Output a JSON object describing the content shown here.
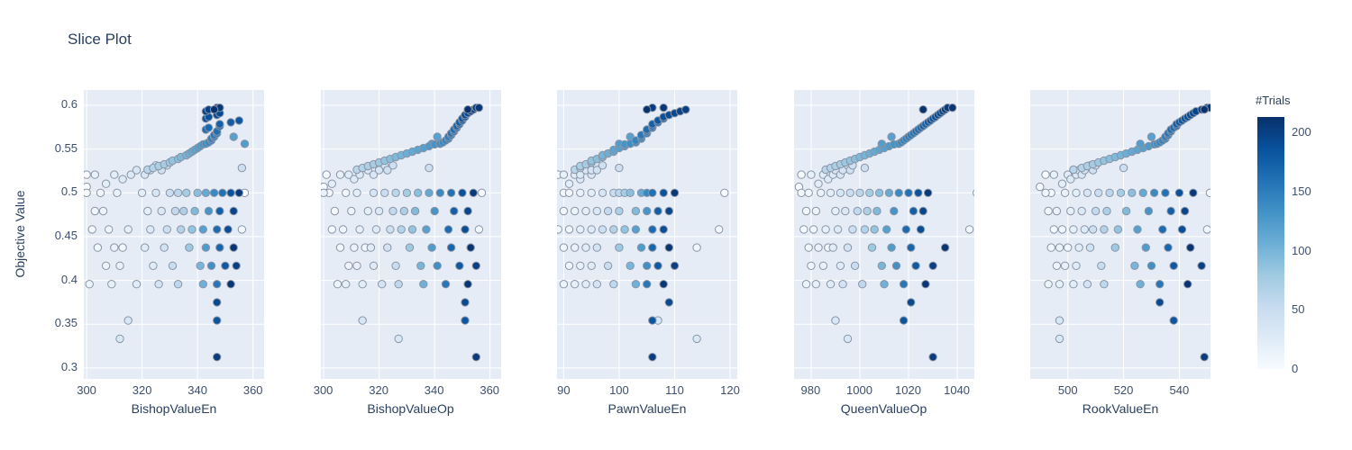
{
  "chart_data": {
    "type": "scatter",
    "title": "Slice Plot",
    "ylabel": "Objective Value",
    "ylim": [
      0.2875,
      0.6175
    ],
    "yticks": [
      "0.3",
      "0.35",
      "0.4",
      "0.45",
      "0.5",
      "0.55",
      "0.6"
    ],
    "grid": true,
    "colorbar": {
      "title": "#Trials",
      "ticks": [
        0,
        50,
        100,
        150,
        200
      ],
      "max": 213,
      "colorscale_name": "Blues"
    },
    "subplots": [
      {
        "xlabel": "BishopValueEn",
        "param": "BishopValueEn",
        "xlim": [
          299,
          364
        ],
        "xticks": [
          300,
          320,
          340,
          360
        ]
      },
      {
        "xlabel": "BishopValueOp",
        "param": "BishopValueOp",
        "xlim": [
          299,
          364
        ],
        "xticks": [
          300,
          320,
          340,
          360
        ]
      },
      {
        "xlabel": "PawnValueEn",
        "param": "PawnValueEn",
        "xlim": [
          88.8,
          121.3
        ],
        "xticks": [
          90,
          100,
          110,
          120
        ]
      },
      {
        "xlabel": "QueenValueOp",
        "param": "QueenValueOp",
        "xlim": [
          973,
          1047
        ],
        "xticks": [
          980,
          1000,
          1020,
          1040
        ]
      },
      {
        "xlabel": "RookValueEn",
        "param": "RookValueEn",
        "xlim": [
          486.5,
          551.2
        ],
        "xticks": [
          500,
          520,
          540
        ]
      }
    ],
    "trials": {
      "number": [
        3,
        8,
        15,
        22,
        35,
        48,
        60,
        75,
        90,
        110,
        140,
        160,
        185,
        205,
        2,
        5,
        12,
        20,
        30,
        55,
        70,
        95,
        130,
        175,
        195,
        4,
        10,
        18,
        28,
        45,
        65,
        85,
        120,
        165,
        190,
        6,
        7,
        14,
        25,
        40,
        80,
        125,
        170,
        210,
        9,
        11,
        16,
        26,
        50,
        100,
        135,
        180,
        200,
        13,
        19,
        24,
        38,
        58,
        105,
        155,
        208,
        0,
        1,
        17,
        21,
        23,
        27,
        29,
        31,
        33,
        36,
        39,
        42,
        44,
        46,
        62,
        66,
        71,
        76,
        81,
        86,
        91,
        96,
        101,
        106,
        111,
        116,
        121,
        126,
        131,
        136,
        119,
        123,
        141,
        145,
        148,
        151,
        154,
        157,
        161,
        164,
        167,
        171,
        174,
        177,
        181,
        184,
        187,
        191,
        194,
        197,
        201,
        204,
        207,
        211,
        192,
        183,
        34,
        32,
        203
      ],
      "objective": [
        0.5,
        0.5,
        0.5,
        0.5,
        0.5,
        0.5,
        0.5,
        0.5,
        0.5,
        0.5,
        0.5,
        0.5,
        0.5,
        0.5,
        0.5,
        0.4792,
        0.4792,
        0.4792,
        0.4792,
        0.4792,
        0.4792,
        0.4792,
        0.4792,
        0.4792,
        0.4792,
        0.4583,
        0.4583,
        0.4583,
        0.4583,
        0.4583,
        0.4583,
        0.4583,
        0.4583,
        0.4583,
        0.4583,
        0.4583,
        0.4375,
        0.4375,
        0.4375,
        0.4375,
        0.4375,
        0.4375,
        0.4375,
        0.4375,
        0.4375,
        0.4167,
        0.4167,
        0.4167,
        0.4167,
        0.4167,
        0.4167,
        0.4167,
        0.4167,
        0.3958,
        0.3958,
        0.3958,
        0.3958,
        0.3958,
        0.3958,
        0.3958,
        0.3958,
        0.5069,
        0.5208,
        0.5208,
        0.5104,
        0.5208,
        0.5156,
        0.5208,
        0.526,
        0.5208,
        0.526,
        0.5313,
        0.526,
        0.5313,
        0.5285,
        0.5265,
        0.5285,
        0.5306,
        0.5326,
        0.5347,
        0.5368,
        0.5388,
        0.5409,
        0.543,
        0.545,
        0.5471,
        0.5492,
        0.5512,
        0.5533,
        0.5554,
        0.556,
        0.564,
        0.556,
        0.5577,
        0.5598,
        0.5619,
        0.564,
        0.566,
        0.5681,
        0.5702,
        0.5723,
        0.5744,
        0.5764,
        0.5785,
        0.5806,
        0.5827,
        0.5848,
        0.5868,
        0.5889,
        0.591,
        0.5931,
        0.5951,
        0.5972,
        0.5972,
        0.5952,
        0.375,
        0.3542,
        0.3542,
        0.3333,
        0.3125
      ],
      "params": {
        "BishopValueEn": [
          300,
          305,
          311,
          320,
          325,
          330,
          333,
          336,
          340,
          343,
          346,
          349,
          352,
          355,
          357,
          303,
          306,
          322,
          327,
          332,
          335,
          339,
          344,
          348,
          353,
          302,
          308,
          315,
          323,
          329,
          334,
          338,
          342,
          347,
          351,
          356,
          304,
          310,
          321,
          328,
          337,
          343,
          348,
          353,
          313,
          307,
          312,
          324,
          331,
          341,
          345,
          350,
          354,
          301,
          309,
          318,
          326,
          333,
          342,
          347,
          352,
          300,
          300,
          303,
          307,
          310,
          313,
          316,
          318,
          321,
          323,
          325,
          327,
          329,
          356,
          322,
          324,
          326,
          328,
          330,
          331,
          333,
          334,
          336,
          337,
          338,
          339,
          340,
          341,
          342,
          343,
          353,
          357,
          344,
          345,
          345,
          346,
          346,
          347,
          347,
          343,
          344,
          348,
          348,
          352,
          355,
          343,
          344,
          347,
          348,
          343,
          344,
          347,
          348,
          346,
          347,
          347,
          315,
          312,
          347
        ],
        "BishopValueOp": [
          302,
          308,
          300,
          312,
          318,
          322,
          326,
          330,
          334,
          338,
          342,
          346,
          350,
          354,
          357,
          304,
          310,
          316,
          320,
          325,
          329,
          333,
          340,
          347,
          352,
          303,
          307,
          313,
          319,
          324,
          328,
          332,
          337,
          345,
          351,
          356,
          306,
          311,
          317,
          323,
          331,
          339,
          346,
          353,
          315,
          309,
          312,
          318,
          326,
          335,
          341,
          349,
          355,
          305,
          308,
          314,
          321,
          327,
          336,
          344,
          352,
          300,
          301,
          306,
          303,
          309,
          311,
          313,
          316,
          318,
          320,
          322,
          323,
          325,
          338,
          312,
          314,
          316,
          318,
          320,
          322,
          324,
          326,
          328,
          330,
          332,
          334,
          336,
          338,
          340,
          342,
          341,
          339,
          343,
          344,
          345,
          345,
          346,
          346,
          347,
          347,
          348,
          348,
          349,
          349,
          350,
          350,
          351,
          351,
          352,
          353,
          354,
          355,
          356,
          352,
          351,
          351,
          314,
          327,
          355
        ],
        "PawnValueEn": [
          90,
          91,
          93,
          95,
          97,
          99,
          100,
          101,
          102,
          104,
          105,
          106,
          108,
          110,
          119,
          90,
          92,
          94,
          96,
          98,
          100,
          103,
          105,
          107,
          109,
          89,
          91,
          93,
          95,
          97,
          99,
          101,
          103,
          106,
          108,
          118,
          90,
          92,
          94,
          96,
          100,
          104,
          106,
          109,
          114,
          91,
          93,
          95,
          98,
          102,
          105,
          107,
          110,
          90,
          92,
          94,
          96,
          99,
          103,
          105,
          108,
          88,
          89,
          90,
          91,
          92,
          93,
          93,
          94,
          95,
          95,
          96,
          96,
          97,
          100,
          92,
          93,
          93,
          94,
          95,
          95,
          96,
          97,
          97,
          98,
          99,
          99,
          100,
          101,
          101,
          102,
          102,
          100,
          103,
          103,
          104,
          104,
          104,
          105,
          105,
          105,
          106,
          106,
          106,
          107,
          107,
          108,
          108,
          109,
          110,
          111,
          112,
          106,
          108,
          105,
          109,
          106,
          107,
          114,
          106
        ],
        "QueenValueOp": [
          976,
          979,
          984,
          988,
          992,
          996,
          1000,
          1004,
          1008,
          1012,
          1016,
          1020,
          1024,
          1028,
          1048,
          978,
          982,
          990,
          994,
          999,
          1003,
          1007,
          1014,
          1022,
          1026,
          977,
          981,
          986,
          991,
          997,
          1002,
          1006,
          1011,
          1019,
          1025,
          1045,
          979,
          983,
          989,
          995,
          1005,
          1013,
          1021,
          1035,
          987,
          980,
          985,
          992,
          998,
          1009,
          1015,
          1023,
          1030,
          978,
          982,
          988,
          993,
          1001,
          1010,
          1018,
          1027,
          975,
          976,
          980,
          983,
          985,
          987,
          989,
          990,
          992,
          993,
          995,
          996,
          997,
          1002,
          986,
          988,
          990,
          992,
          994,
          996,
          998,
          1000,
          1002,
          1004,
          1006,
          1008,
          1010,
          1012,
          1014,
          1016,
          1013,
          1009,
          1017,
          1018,
          1019,
          1020,
          1021,
          1022,
          1023,
          1024,
          1025,
          1026,
          1027,
          1028,
          1029,
          1030,
          1031,
          1032,
          1033,
          1034,
          1035,
          1036,
          1038,
          1026,
          1021,
          1018,
          990,
          995,
          1030
        ],
        "RookValueEn": [
          494,
          492,
          499,
          503,
          507,
          511,
          515,
          519,
          523,
          527,
          531,
          535,
          540,
          545,
          551,
          493,
          496,
          501,
          505,
          510,
          514,
          521,
          529,
          537,
          542,
          495,
          498,
          502,
          506,
          509,
          513,
          518,
          525,
          534,
          541,
          550,
          494,
          497,
          504,
          508,
          517,
          528,
          536,
          544,
          500,
          496,
          499,
          503,
          512,
          524,
          530,
          538,
          548,
          493,
          497,
          502,
          507,
          513,
          526,
          533,
          543,
          490,
          492,
          495,
          498,
          500,
          501,
          503,
          504,
          505,
          506,
          508,
          509,
          510,
          520,
          502,
          505,
          507,
          509,
          511,
          513,
          515,
          517,
          519,
          521,
          523,
          525,
          527,
          529,
          531,
          532,
          530,
          526,
          533,
          534,
          535,
          535,
          536,
          536,
          537,
          537,
          538,
          539,
          539,
          540,
          541,
          542,
          543,
          544,
          545,
          546,
          548,
          550,
          551,
          549,
          533,
          538,
          497,
          497,
          549
        ]
      }
    },
    "style": {
      "plot_background": "#e5ecf6",
      "grid_color": "#ffffff",
      "marker_line": "#8a94a5",
      "title_color": "#2a3f5f",
      "tick_color": "#3d4f6d",
      "colorscale_min": "#f7fbff",
      "colorscale_max": "#08306b"
    }
  }
}
